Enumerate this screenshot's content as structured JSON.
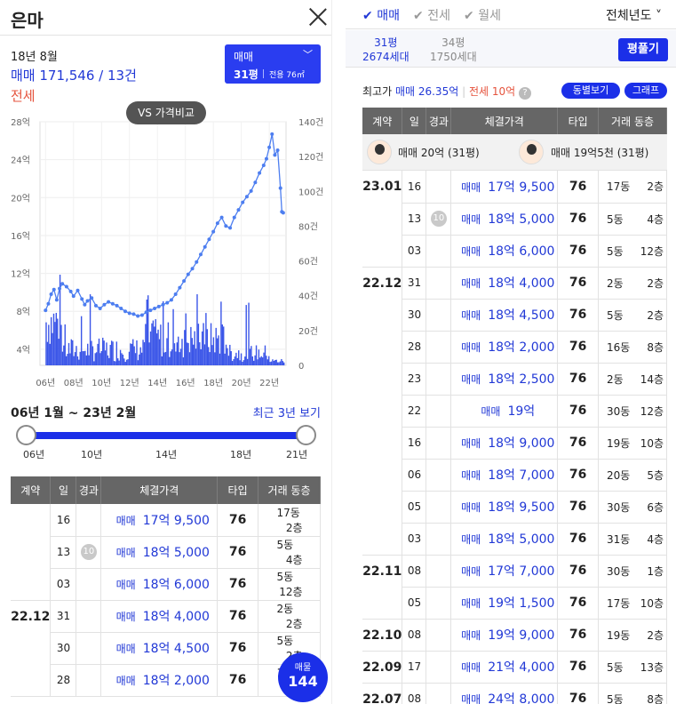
{
  "left": {
    "title": "은마",
    "info": {
      "date": "18년 8월",
      "sale_line": "매매 171,546 / 13건",
      "rent_line": "전세"
    },
    "type_box": {
      "type": "매매",
      "area": "31평",
      "exclusive": "전용 76㎡"
    },
    "vs_button": "VS 가격비교",
    "range": {
      "label": "06년 1월 ~ 23년 2월",
      "link": "최근 3년 보기",
      "ticks": [
        "06년",
        "10년",
        "14년",
        "18년",
        "21년"
      ]
    },
    "fab": {
      "label": "매물",
      "count": "144"
    }
  },
  "chart_data": {
    "type": "line",
    "x_ticks": [
      "06년",
      "08년",
      "10년",
      "12년",
      "14년",
      "16년",
      "18년",
      "20년",
      "22년"
    ],
    "y_left": {
      "ticks": [
        "4억",
        "8억",
        "12억",
        "16억",
        "20억",
        "24억",
        "28억"
      ],
      "min": 2.3,
      "max": 28
    },
    "y_right": {
      "ticks": [
        "0",
        "20건",
        "40건",
        "60건",
        "80건",
        "100건",
        "120건",
        "140건"
      ],
      "min": 0,
      "max": 140
    },
    "series": [
      {
        "kind": "price",
        "x": [
          2006.0,
          2006.2,
          2006.4,
          2006.6,
          2006.8,
          2007.0,
          2007.2,
          2007.5,
          2007.8,
          2008.0,
          2008.3,
          2008.6,
          2008.8,
          2009.0,
          2009.3,
          2009.6,
          2009.9,
          2010.2,
          2010.5,
          2010.8,
          2011.1,
          2011.4,
          2011.7,
          2012.0,
          2012.3,
          2012.6,
          2012.9,
          2013.2,
          2013.5,
          2013.8,
          2014.1,
          2014.4,
          2014.7,
          2015.0,
          2015.3,
          2015.6,
          2015.9,
          2016.2,
          2016.5,
          2016.8,
          2017.1,
          2017.4,
          2017.7,
          2018.0,
          2018.3,
          2018.6,
          2018.9,
          2019.2,
          2019.5,
          2019.8,
          2020.1,
          2020.4,
          2020.7,
          2021.0,
          2021.3,
          2021.6,
          2021.8,
          2022.0,
          2022.2,
          2022.4,
          2022.6,
          2022.8,
          2022.9,
          2023.0
        ],
        "y": [
          8.1,
          8.8,
          9.8,
          10.3,
          9.2,
          10.4,
          10.9,
          10.6,
          10.1,
          9.6,
          10.2,
          9.3,
          8.7,
          9.1,
          9.4,
          8.6,
          8.3,
          8.7,
          9.0,
          8.8,
          8.6,
          8.3,
          8.0,
          7.8,
          7.7,
          7.5,
          7.6,
          7.9,
          8.1,
          8.3,
          8.5,
          8.7,
          8.9,
          9.2,
          9.8,
          10.5,
          11.2,
          11.9,
          12.5,
          13.2,
          14.0,
          14.8,
          15.6,
          16.4,
          17.3,
          17.9,
          17.0,
          16.8,
          17.9,
          18.7,
          19.5,
          20.1,
          20.7,
          21.6,
          22.6,
          23.4,
          24.1,
          25.3,
          26.7,
          24.5,
          25.0,
          21.0,
          18.5,
          18.4
        ]
      },
      {
        "kind": "volume"
      }
    ]
  },
  "deals_table": {
    "headers": [
      "계약",
      "일",
      "경과",
      "체결가격",
      "타입",
      "거래 동층"
    ],
    "left_rows": [
      {
        "ym": "",
        "day": "16",
        "badge": "",
        "kind": "매매",
        "price": "17억 9,500",
        "type": "76",
        "dong": "17동",
        "floor": "2층"
      },
      {
        "ym": "",
        "day": "13",
        "badge": "10",
        "kind": "매매",
        "price": "18억 5,000",
        "type": "76",
        "dong": "5동",
        "floor": "4층"
      },
      {
        "ym": "",
        "day": "03",
        "badge": "",
        "kind": "매매",
        "price": "18억 6,000",
        "type": "76",
        "dong": "5동",
        "floor": "12층"
      },
      {
        "ym": "22.12",
        "day": "31",
        "badge": "",
        "kind": "매매",
        "price": "18억 4,000",
        "type": "76",
        "dong": "2동",
        "floor": "2층"
      },
      {
        "ym": "",
        "day": "30",
        "badge": "",
        "kind": "매매",
        "price": "18억 4,500",
        "type": "76",
        "dong": "5동",
        "floor": "2층"
      },
      {
        "ym": "",
        "day": "28",
        "badge": "",
        "kind": "매매",
        "price": "18억 2,000",
        "type": "76",
        "dong": "16동",
        "floor": "8층"
      }
    ],
    "right_rows": [
      {
        "ym": "23.01",
        "day": "16",
        "badge": "",
        "kind": "매매",
        "price": "17억 9,500",
        "type": "76",
        "dong": "17동",
        "floor": "2층"
      },
      {
        "ym": "",
        "day": "13",
        "badge": "10",
        "kind": "매매",
        "price": "18억 5,000",
        "type": "76",
        "dong": "5동",
        "floor": "4층"
      },
      {
        "ym": "",
        "day": "03",
        "badge": "",
        "kind": "매매",
        "price": "18억 6,000",
        "type": "76",
        "dong": "5동",
        "floor": "12층"
      },
      {
        "ym": "22.12",
        "day": "31",
        "badge": "",
        "kind": "매매",
        "price": "18억 4,000",
        "type": "76",
        "dong": "2동",
        "floor": "2층"
      },
      {
        "ym": "",
        "day": "30",
        "badge": "",
        "kind": "매매",
        "price": "18억 4,500",
        "type": "76",
        "dong": "5동",
        "floor": "2층"
      },
      {
        "ym": "",
        "day": "28",
        "badge": "",
        "kind": "매매",
        "price": "18억 2,000",
        "type": "76",
        "dong": "16동",
        "floor": "8층"
      },
      {
        "ym": "",
        "day": "23",
        "badge": "",
        "kind": "매매",
        "price": "18억 2,500",
        "type": "76",
        "dong": "2동",
        "floor": "14층"
      },
      {
        "ym": "",
        "day": "22",
        "badge": "",
        "kind": "매매",
        "price": "19억",
        "type": "76",
        "dong": "30동",
        "floor": "12층"
      },
      {
        "ym": "",
        "day": "16",
        "badge": "",
        "kind": "매매",
        "price": "18억 9,000",
        "type": "76",
        "dong": "19동",
        "floor": "10층"
      },
      {
        "ym": "",
        "day": "06",
        "badge": "",
        "kind": "매매",
        "price": "18억 7,000",
        "type": "76",
        "dong": "20동",
        "floor": "5층"
      },
      {
        "ym": "",
        "day": "05",
        "badge": "",
        "kind": "매매",
        "price": "18억 9,500",
        "type": "76",
        "dong": "30동",
        "floor": "6층"
      },
      {
        "ym": "",
        "day": "03",
        "badge": "",
        "kind": "매매",
        "price": "18억 5,000",
        "type": "76",
        "dong": "31동",
        "floor": "4층"
      },
      {
        "ym": "22.11",
        "day": "08",
        "badge": "",
        "kind": "매매",
        "price": "17억 7,000",
        "type": "76",
        "dong": "30동",
        "floor": "1층"
      },
      {
        "ym": "",
        "day": "05",
        "badge": "",
        "kind": "매매",
        "price": "19억 1,500",
        "type": "76",
        "dong": "17동",
        "floor": "10층"
      },
      {
        "ym": "22.10",
        "day": "08",
        "badge": "",
        "kind": "매매",
        "price": "19억 9,000",
        "type": "76",
        "dong": "19동",
        "floor": "2층"
      },
      {
        "ym": "22.09",
        "day": "17",
        "badge": "",
        "kind": "매매",
        "price": "21억 4,000",
        "type": "76",
        "dong": "5동",
        "floor": "13층"
      },
      {
        "ym": "22.07",
        "day": "08",
        "badge": "",
        "kind": "매매",
        "price": "24억 8,000",
        "type": "76",
        "dong": "5동",
        "floor": "8층"
      }
    ]
  },
  "right": {
    "tabs": [
      "매매",
      "전세",
      "월세"
    ],
    "year_select": "전체년도",
    "area_options": [
      {
        "area": "31평",
        "households": "2674세대"
      },
      {
        "area": "34평",
        "households": "1750세대"
      }
    ],
    "pyeong_button": "평풀기",
    "stat": {
      "label": "최고가",
      "sale": "매매 26.35억",
      "sep": "|",
      "rent": "전세 10억",
      "help": "?"
    },
    "buttons": [
      "동별보기",
      "그래프"
    ],
    "compare": [
      {
        "text": "매매 20억 (31평)"
      },
      {
        "text": "매매 19억5천 (31평)"
      }
    ]
  }
}
